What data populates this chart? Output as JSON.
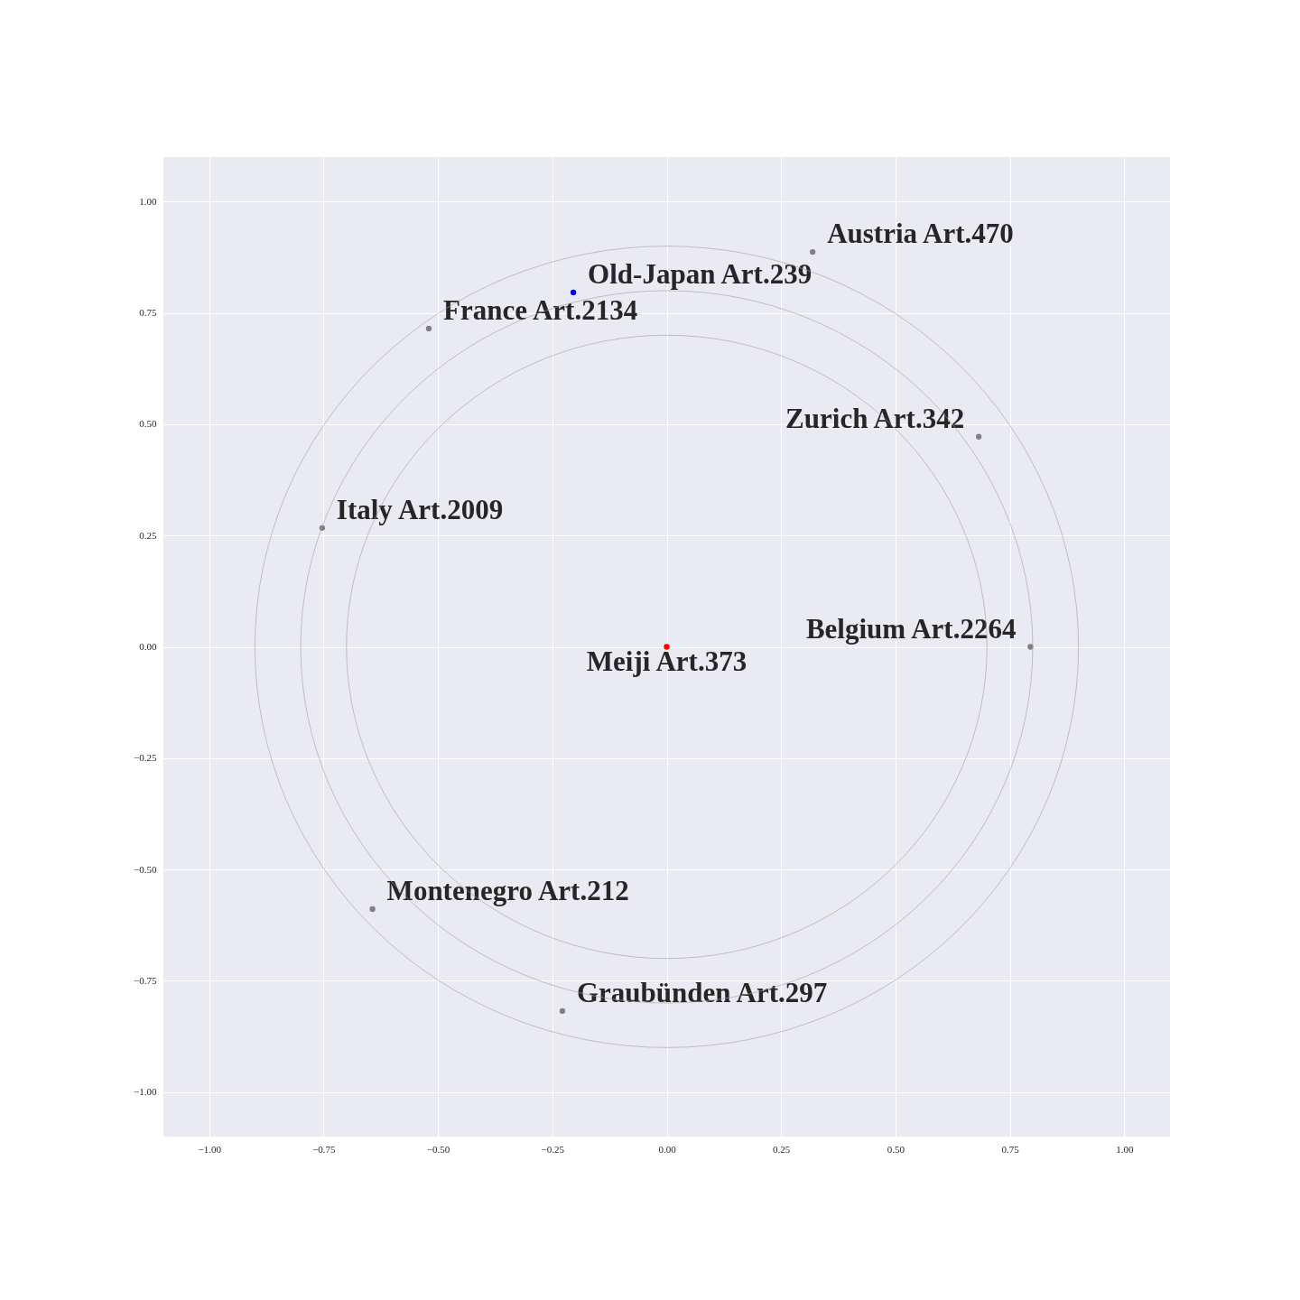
{
  "chart_data": {
    "type": "scatter",
    "xlim": [
      -1.1,
      1.1
    ],
    "ylim": [
      -1.1,
      1.1
    ],
    "xticks": [
      {
        "value": -1,
        "label": "−1.00"
      },
      {
        "value": -0.75,
        "label": "−0.75"
      },
      {
        "value": -0.5,
        "label": "−0.50"
      },
      {
        "value": -0.25,
        "label": "−0.25"
      },
      {
        "value": 0,
        "label": "0.00"
      },
      {
        "value": 0.25,
        "label": "0.25"
      },
      {
        "value": 0.5,
        "label": "0.50"
      },
      {
        "value": 0.75,
        "label": "0.75"
      },
      {
        "value": 1,
        "label": "1.00"
      }
    ],
    "yticks": [
      {
        "value": -1,
        "label": "−1.00"
      },
      {
        "value": -0.75,
        "label": "−0.75"
      },
      {
        "value": -0.5,
        "label": "−0.50"
      },
      {
        "value": -0.25,
        "label": "−0.25"
      },
      {
        "value": 0,
        "label": "0.00"
      },
      {
        "value": 0.25,
        "label": "0.25"
      },
      {
        "value": 0.5,
        "label": "0.50"
      },
      {
        "value": 0.75,
        "label": "0.75"
      },
      {
        "value": 1,
        "label": "1.00"
      }
    ],
    "grid": true,
    "series": [
      {
        "marker": "circle",
        "x": [
          0.319,
          -0.204,
          -0.52,
          0.682,
          -0.753,
          0.795,
          0,
          -0.643,
          -0.228
        ],
        "values": [
          0.887,
          0.796,
          0.715,
          0.472,
          0.267,
          0,
          0,
          -0.589,
          -0.818
        ],
        "colors": [
          "#808080",
          "#0000ff",
          "#808080",
          "#808080",
          "#808080",
          "#808080",
          "#ff0000",
          "#808080",
          "#808080"
        ]
      }
    ],
    "annotations": [
      {
        "text": "Austria Art.470",
        "x": 0.319,
        "y": 0.887
      },
      {
        "text": "Old-Japan Art.239",
        "x": -0.204,
        "y": 0.796
      },
      {
        "text": "France Art.2134",
        "x": -0.52,
        "y": 0.715
      },
      {
        "text": "Zurich Art.342",
        "x": 0.682,
        "y": 0.472
      },
      {
        "text": "Italy Art.2009",
        "x": -0.753,
        "y": 0.267
      },
      {
        "text": "Belgium Art.2264",
        "x": 0.795,
        "y": 0
      },
      {
        "text": "Meiji Art.373",
        "x": 0,
        "y": 0
      },
      {
        "text": "Montenegro Art.212",
        "x": -0.643,
        "y": -0.589
      },
      {
        "text": "Graubünden Art.297",
        "x": -0.228,
        "y": -0.818
      }
    ]
  }
}
